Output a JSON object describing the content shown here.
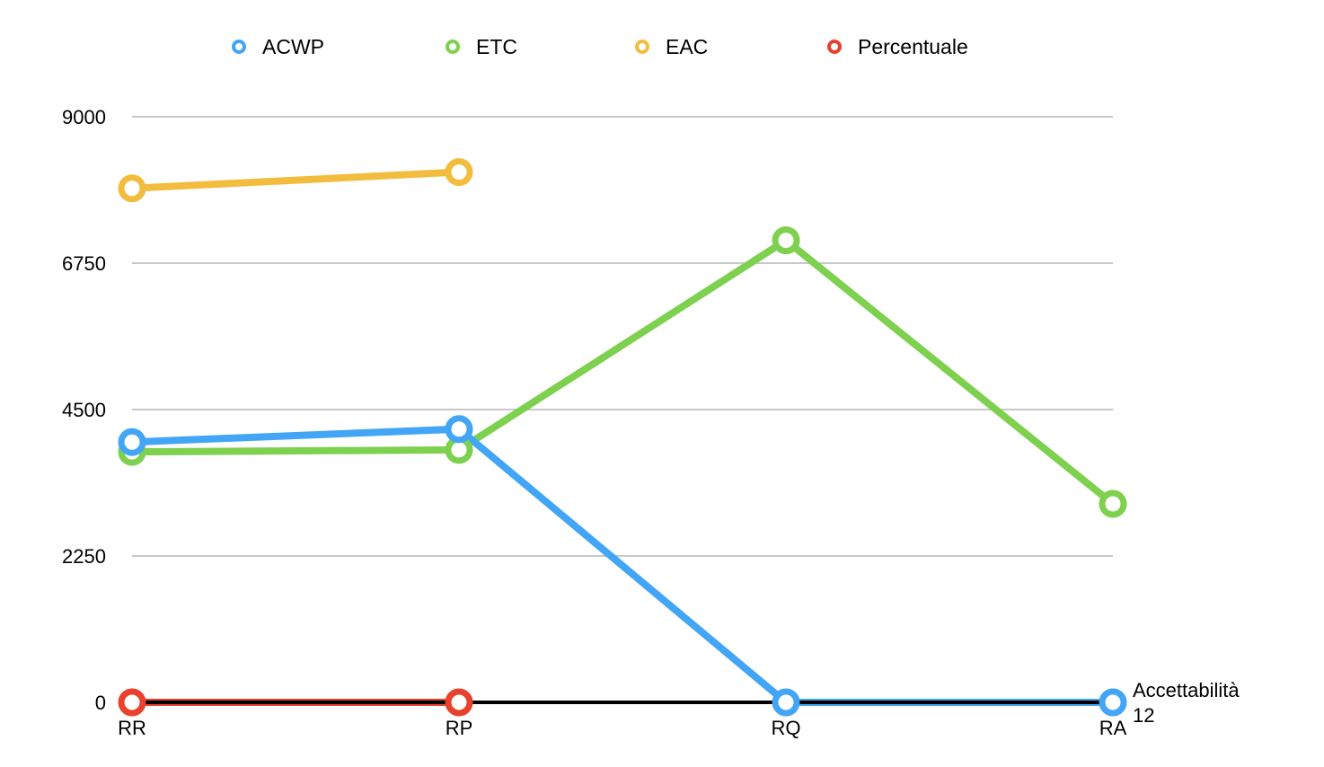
{
  "chart_data": {
    "type": "line",
    "categories": [
      "RR",
      "RP",
      "RQ",
      "RA"
    ],
    "yticks": [
      0,
      2250,
      4500,
      6750,
      9000
    ],
    "ylim": [
      0,
      9000
    ],
    "grid": true,
    "legend_position": "top",
    "series": [
      {
        "name": "ACWP",
        "color": "#42a5f5",
        "values": [
          4000,
          4200,
          0,
          0
        ]
      },
      {
        "name": "ETC",
        "color": "#7ed04f",
        "values": [
          3850,
          3880,
          7100,
          3050
        ]
      },
      {
        "name": "EAC",
        "color": "#f2bd3e",
        "values": [
          7900,
          8150,
          null,
          null
        ]
      },
      {
        "name": "Percentuale",
        "color": "#e8412d",
        "values": [
          0,
          0,
          null,
          null
        ]
      }
    ],
    "annotation": {
      "line1": "Accettabilità",
      "line2": "12"
    }
  }
}
